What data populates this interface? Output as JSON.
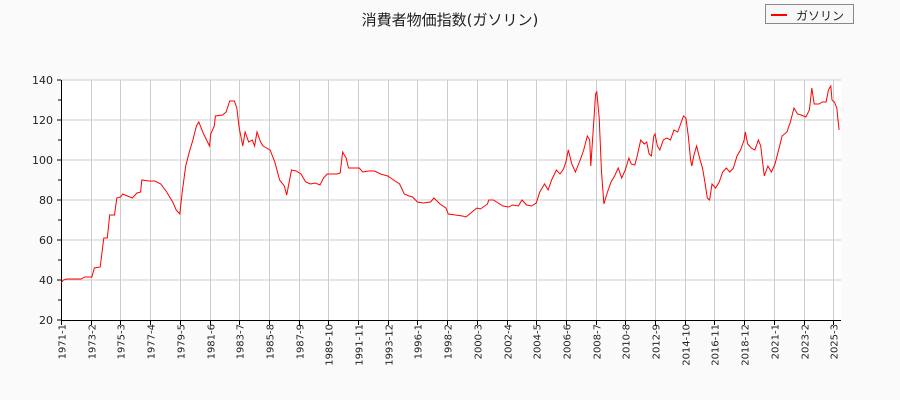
{
  "title": "消費者物価指数(ガソリン)",
  "legend": {
    "label": "ガソリン",
    "color": "#ff0000"
  },
  "chart_data": {
    "type": "line",
    "title": "消費者物価指数(ガソリン)",
    "xlabel": "",
    "ylabel": "",
    "ylim": [
      20,
      140
    ],
    "yticks": [
      20,
      40,
      60,
      80,
      100,
      120,
      140
    ],
    "xtick_labels": [
      "1971-1",
      "1973-2",
      "1975-3",
      "1977-4",
      "1979-5",
      "1981-6",
      "1983-7",
      "1985-8",
      "1987-9",
      "1989-10",
      "1991-11",
      "1993-12",
      "1996-1",
      "1998-2",
      "2000-3",
      "2002-4",
      "2004-5",
      "2006-6",
      "2008-7",
      "2010-8",
      "2012-9",
      "2014-10",
      "2016-11",
      "2018-12",
      "2021-1",
      "2023-2",
      "2025-3"
    ],
    "grid": true,
    "legend_position": "top-right",
    "series": [
      {
        "name": "ガソリン",
        "color": "#ff0000",
        "points": [
          [
            "1971-1",
            38.5
          ],
          [
            "1971-3",
            40
          ],
          [
            "1971-6",
            40.5
          ],
          [
            "1972-6",
            40.5
          ],
          [
            "1972-9",
            41.5
          ],
          [
            "1973-3",
            41.5
          ],
          [
            "1973-5",
            46
          ],
          [
            "1973-10",
            46.5
          ],
          [
            "1974-1",
            61
          ],
          [
            "1974-4",
            61
          ],
          [
            "1974-6",
            72.5
          ],
          [
            "1974-10",
            72.5
          ],
          [
            "1974-12",
            81
          ],
          [
            "1975-3",
            81.5
          ],
          [
            "1975-5",
            83
          ],
          [
            "1975-9",
            82
          ],
          [
            "1976-1",
            81
          ],
          [
            "1976-5",
            83.5
          ],
          [
            "1976-8",
            84
          ],
          [
            "1976-9",
            90
          ],
          [
            "1977-3",
            89.5
          ],
          [
            "1977-8",
            89.5
          ],
          [
            "1978-1",
            88
          ],
          [
            "1978-6",
            84
          ],
          [
            "1978-11",
            79
          ],
          [
            "1979-2",
            75
          ],
          [
            "1979-5",
            73
          ],
          [
            "1979-7",
            84
          ],
          [
            "1979-10",
            97
          ],
          [
            "1980-1",
            104
          ],
          [
            "1980-4",
            110
          ],
          [
            "1980-7",
            117
          ],
          [
            "1980-9",
            119
          ],
          [
            "1981-1",
            113
          ],
          [
            "1981-6",
            107
          ],
          [
            "1981-7",
            113
          ],
          [
            "1981-10",
            117
          ],
          [
            "1981-11",
            122
          ],
          [
            "1982-5",
            122.5
          ],
          [
            "1982-8",
            124
          ],
          [
            "1982-11",
            129.5
          ],
          [
            "1983-3",
            129.5
          ],
          [
            "1983-5",
            126
          ],
          [
            "1983-7",
            116
          ],
          [
            "1983-10",
            107
          ],
          [
            "1983-12",
            114
          ],
          [
            "1984-3",
            109
          ],
          [
            "1984-6",
            110
          ],
          [
            "1984-8",
            107
          ],
          [
            "1984-10",
            114
          ],
          [
            "1985-1",
            109
          ],
          [
            "1985-3",
            107
          ],
          [
            "1985-6",
            106
          ],
          [
            "1985-9",
            105
          ],
          [
            "1986-1",
            99
          ],
          [
            "1986-5",
            90
          ],
          [
            "1986-9",
            87
          ],
          [
            "1986-11",
            82.5
          ],
          [
            "1987-3",
            95
          ],
          [
            "1987-7",
            94.5
          ],
          [
            "1987-11",
            93
          ],
          [
            "1988-3",
            89
          ],
          [
            "1988-7",
            88
          ],
          [
            "1988-11",
            88.5
          ],
          [
            "1989-3",
            87.5
          ],
          [
            "1989-6",
            91
          ],
          [
            "1989-9",
            93
          ],
          [
            "1990-1",
            93
          ],
          [
            "1990-5",
            93
          ],
          [
            "1990-8",
            93.5
          ],
          [
            "1990-10",
            104
          ],
          [
            "1991-1",
            101
          ],
          [
            "1991-3",
            96
          ],
          [
            "1991-8",
            96
          ],
          [
            "1991-12",
            96
          ],
          [
            "1992-3",
            94
          ],
          [
            "1992-8",
            94.5
          ],
          [
            "1993-1",
            94.5
          ],
          [
            "1993-6",
            93
          ],
          [
            "1993-12",
            92
          ],
          [
            "1994-5",
            90
          ],
          [
            "1994-10",
            88
          ],
          [
            "1995-2",
            83
          ],
          [
            "1995-6",
            82
          ],
          [
            "1995-9",
            81.5
          ],
          [
            "1996-1",
            79
          ],
          [
            "1996-6",
            78.5
          ],
          [
            "1996-12",
            79
          ],
          [
            "1997-3",
            81
          ],
          [
            "1997-8",
            78
          ],
          [
            "1998-1",
            76
          ],
          [
            "1998-3",
            73
          ],
          [
            "1998-9",
            72.5
          ],
          [
            "1999-3",
            72
          ],
          [
            "1999-6",
            71.5
          ],
          [
            "1999-11",
            74
          ],
          [
            "2000-3",
            76
          ],
          [
            "2000-6",
            75.5
          ],
          [
            "2000-12",
            78
          ],
          [
            "2001-1",
            80
          ],
          [
            "2001-5",
            80
          ],
          [
            "2001-9",
            78.5
          ],
          [
            "2002-1",
            77
          ],
          [
            "2002-6",
            76.5
          ],
          [
            "2002-9",
            77.5
          ],
          [
            "2003-2",
            77
          ],
          [
            "2003-5",
            80
          ],
          [
            "2003-9",
            77.5
          ],
          [
            "2004-1",
            77
          ],
          [
            "2004-5",
            78.5
          ],
          [
            "2004-8",
            84
          ],
          [
            "2004-12",
            88
          ],
          [
            "2005-3",
            85
          ],
          [
            "2005-6",
            90
          ],
          [
            "2005-10",
            95
          ],
          [
            "2006-1",
            93
          ],
          [
            "2006-4",
            95.5
          ],
          [
            "2006-6",
            99
          ],
          [
            "2006-8",
            105
          ],
          [
            "2006-11",
            98
          ],
          [
            "2007-2",
            94
          ],
          [
            "2007-6",
            100
          ],
          [
            "2007-9",
            105
          ],
          [
            "2007-12",
            112
          ],
          [
            "2008-2",
            110
          ],
          [
            "2008-3",
            97
          ],
          [
            "2008-5",
            115
          ],
          [
            "2008-7",
            133
          ],
          [
            "2008-8",
            134
          ],
          [
            "2008-10",
            121
          ],
          [
            "2008-12",
            94
          ],
          [
            "2009-2",
            78
          ],
          [
            "2009-5",
            84
          ],
          [
            "2009-8",
            89
          ],
          [
            "2009-11",
            92
          ],
          [
            "2010-2",
            96
          ],
          [
            "2010-5",
            91
          ],
          [
            "2010-8",
            95
          ],
          [
            "2010-11",
            101
          ],
          [
            "2011-1",
            98
          ],
          [
            "2011-4",
            97.5
          ],
          [
            "2011-6",
            102
          ],
          [
            "2011-9",
            110
          ],
          [
            "2011-12",
            108
          ],
          [
            "2012-2",
            109
          ],
          [
            "2012-4",
            103
          ],
          [
            "2012-6",
            102
          ],
          [
            "2012-8",
            112
          ],
          [
            "2012-9",
            113
          ],
          [
            "2012-11",
            107
          ],
          [
            "2013-1",
            105
          ],
          [
            "2013-4",
            110
          ],
          [
            "2013-7",
            111
          ],
          [
            "2013-10",
            110
          ],
          [
            "2014-1",
            115
          ],
          [
            "2014-4",
            114
          ],
          [
            "2014-6",
            117
          ],
          [
            "2014-9",
            122
          ],
          [
            "2014-11",
            121
          ],
          [
            "2015-1",
            112
          ],
          [
            "2015-3",
            100
          ],
          [
            "2015-4",
            97
          ],
          [
            "2015-6",
            103
          ],
          [
            "2015-8",
            107
          ],
          [
            "2015-11",
            100
          ],
          [
            "2016-1",
            96
          ],
          [
            "2016-3",
            89
          ],
          [
            "2016-5",
            81
          ],
          [
            "2016-7",
            80
          ],
          [
            "2016-9",
            88
          ],
          [
            "2016-12",
            86
          ],
          [
            "2017-3",
            89
          ],
          [
            "2017-6",
            94
          ],
          [
            "2017-9",
            96
          ],
          [
            "2017-12",
            94
          ],
          [
            "2018-3",
            96
          ],
          [
            "2018-6",
            102
          ],
          [
            "2018-9",
            105
          ],
          [
            "2018-12",
            110
          ],
          [
            "2019-1",
            114
          ],
          [
            "2019-3",
            108
          ],
          [
            "2019-6",
            106
          ],
          [
            "2019-9",
            105
          ],
          [
            "2019-12",
            110
          ],
          [
            "2020-2",
            107
          ],
          [
            "2020-5",
            92
          ],
          [
            "2020-8",
            97
          ],
          [
            "2020-11",
            94
          ],
          [
            "2021-2",
            98
          ],
          [
            "2021-5",
            105
          ],
          [
            "2021-8",
            112
          ],
          [
            "2021-12",
            114
          ],
          [
            "2022-3",
            119
          ],
          [
            "2022-6",
            126
          ],
          [
            "2022-9",
            123
          ],
          [
            "2022-12",
            122.5
          ],
          [
            "2023-4",
            121.5
          ],
          [
            "2023-7",
            125
          ],
          [
            "2023-9",
            136
          ],
          [
            "2023-11",
            128
          ],
          [
            "2024-3",
            128
          ],
          [
            "2024-6",
            129
          ],
          [
            "2024-9",
            129
          ],
          [
            "2024-11",
            135
          ],
          [
            "2025-1",
            137
          ],
          [
            "2025-2",
            130
          ],
          [
            "2025-4",
            129
          ],
          [
            "2025-6",
            126
          ],
          [
            "2025-7",
            120
          ],
          [
            "2025-8",
            115
          ]
        ]
      }
    ]
  }
}
